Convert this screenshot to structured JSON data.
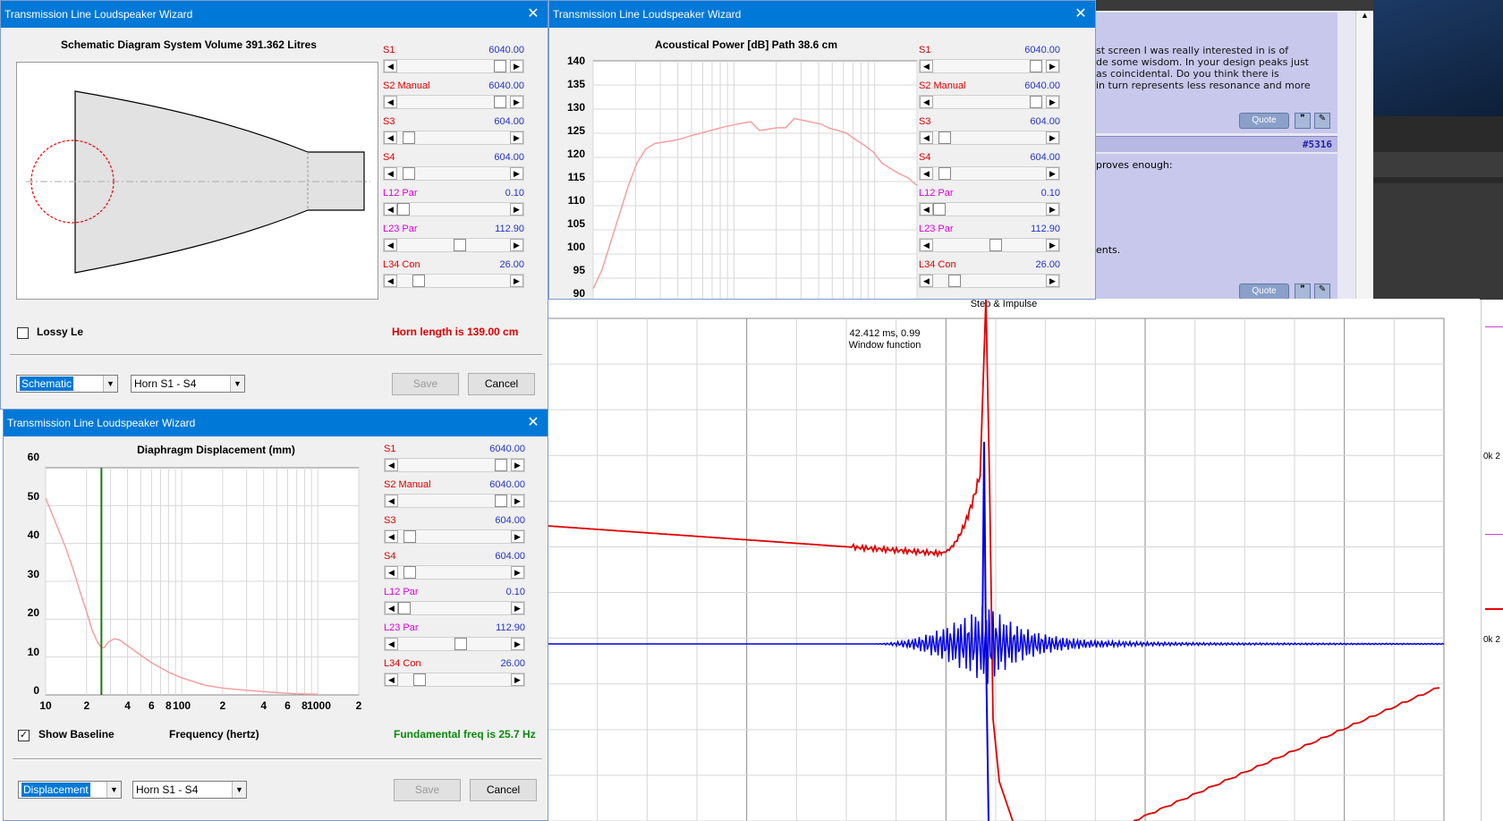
{
  "sliders": [
    {
      "name": "S1",
      "mode": "",
      "value": "6040.00",
      "color": "red",
      "pos": 0.95
    },
    {
      "name": "S2",
      "mode": "Manual",
      "value": "6040.00",
      "color": "red",
      "pos": 0.95
    },
    {
      "name": "S3",
      "mode": "",
      "value": "604.00",
      "color": "red",
      "pos": 0.05
    },
    {
      "name": "S4",
      "mode": "",
      "value": "604.00",
      "color": "red",
      "pos": 0.05
    },
    {
      "name": "L12",
      "mode": "Par",
      "value": "0.10",
      "color": "mag",
      "pos": 0.0
    },
    {
      "name": "L23",
      "mode": "Par",
      "value": "112.90",
      "color": "mag",
      "pos": 0.55
    },
    {
      "name": "L34",
      "mode": "Con",
      "value": "26.00",
      "color": "red",
      "pos": 0.15
    }
  ],
  "win1": {
    "title": "Transmission Line Loudspeaker Wizard",
    "heading": "Schematic Diagram   System Volume 391.362 Litres",
    "checkbox_label": "Lossy Le",
    "status": "Horn length is 139.00 cm",
    "view_select": "Schematic",
    "horn_select": "Horn S1 - S4",
    "save": "Save",
    "cancel": "Cancel"
  },
  "win2": {
    "title": "Transmission Line Loudspeaker Wizard",
    "heading": "Acoustical Power [dB]   Path 38.6 cm",
    "yticks": [
      "140",
      "135",
      "130",
      "125",
      "120",
      "115",
      "110",
      "105",
      "100",
      "95",
      "90"
    ]
  },
  "win3": {
    "title": "Transmission Line Loudspeaker Wizard",
    "heading": "Diaphragm Displacement (mm)",
    "yticks": [
      "60",
      "50",
      "40",
      "30",
      "20",
      "10",
      "0"
    ],
    "xticks": [
      "10",
      "2",
      "4",
      "6",
      "8",
      "100",
      "2",
      "4",
      "6",
      "8",
      "1000",
      "2"
    ],
    "xlabel": "Frequency (hertz)",
    "checkbox_label": "Show Baseline",
    "status": "Fundamental freq is 25.7 Hz",
    "view_select": "Displacement",
    "horn_select": "Horn S1 - S4",
    "save": "Save",
    "cancel": "Cancel"
  },
  "step": {
    "title": "Step & Impulse",
    "annotation_1": "42.412 ms, 0.99",
    "annotation_2": "Window function"
  },
  "forum": {
    "lines": [
      "st screen I was really interested in is of",
      "de some wisdom. In your design peaks just",
      "as coincidental. Do you think there is",
      "in turn represents less resonance and more"
    ],
    "quote": "Quote",
    "post_number": "#5316",
    "line2": "proves enough:",
    "line3": "ents."
  },
  "right_panel": {
    "label1": "0k 2",
    "label2": "0k 2"
  },
  "chart_data": [
    {
      "type": "line",
      "title": "Acoustical Power [dB]   Path 38.6 cm",
      "ylim": [
        90,
        140
      ],
      "series": [
        {
          "values": [
            91,
            95,
            101,
            107,
            113,
            118,
            121,
            122.2,
            122.5,
            122.8,
            123.2,
            123.8,
            124.3,
            124.8,
            125.3,
            125.8,
            126.2,
            126.6,
            126.9,
            125,
            125.3,
            125.6,
            125.6,
            127.6,
            127.2,
            126.8,
            126.4,
            125.5,
            125,
            124.4,
            123,
            121.8,
            120.4,
            118,
            116.8,
            115.7,
            114.8,
            113.2
          ]
        }
      ]
    },
    {
      "type": "line",
      "title": "Diaphragm Displacement (mm)",
      "xlabel": "Frequency (hertz)",
      "ylim": [
        0,
        60
      ],
      "x": [
        10,
        12,
        14,
        16,
        18,
        20,
        22,
        24,
        25.7,
        27,
        29,
        32,
        35,
        40,
        50,
        60,
        80,
        100,
        150,
        200,
        300,
        500,
        700,
        1000
      ],
      "series": [
        {
          "values": [
            52,
            45,
            39,
            33,
            27,
            22,
            17,
            14,
            12.5,
            12.5,
            14,
            14.8,
            14.5,
            13,
            10.5,
            8.5,
            6,
            4.5,
            2.5,
            1.8,
            1.2,
            0.6,
            0.3,
            0.2
          ]
        }
      ]
    },
    {
      "type": "line",
      "title": "Step & Impulse",
      "series": [
        {
          "name": "step"
        },
        {
          "name": "impulse"
        }
      ]
    }
  ]
}
